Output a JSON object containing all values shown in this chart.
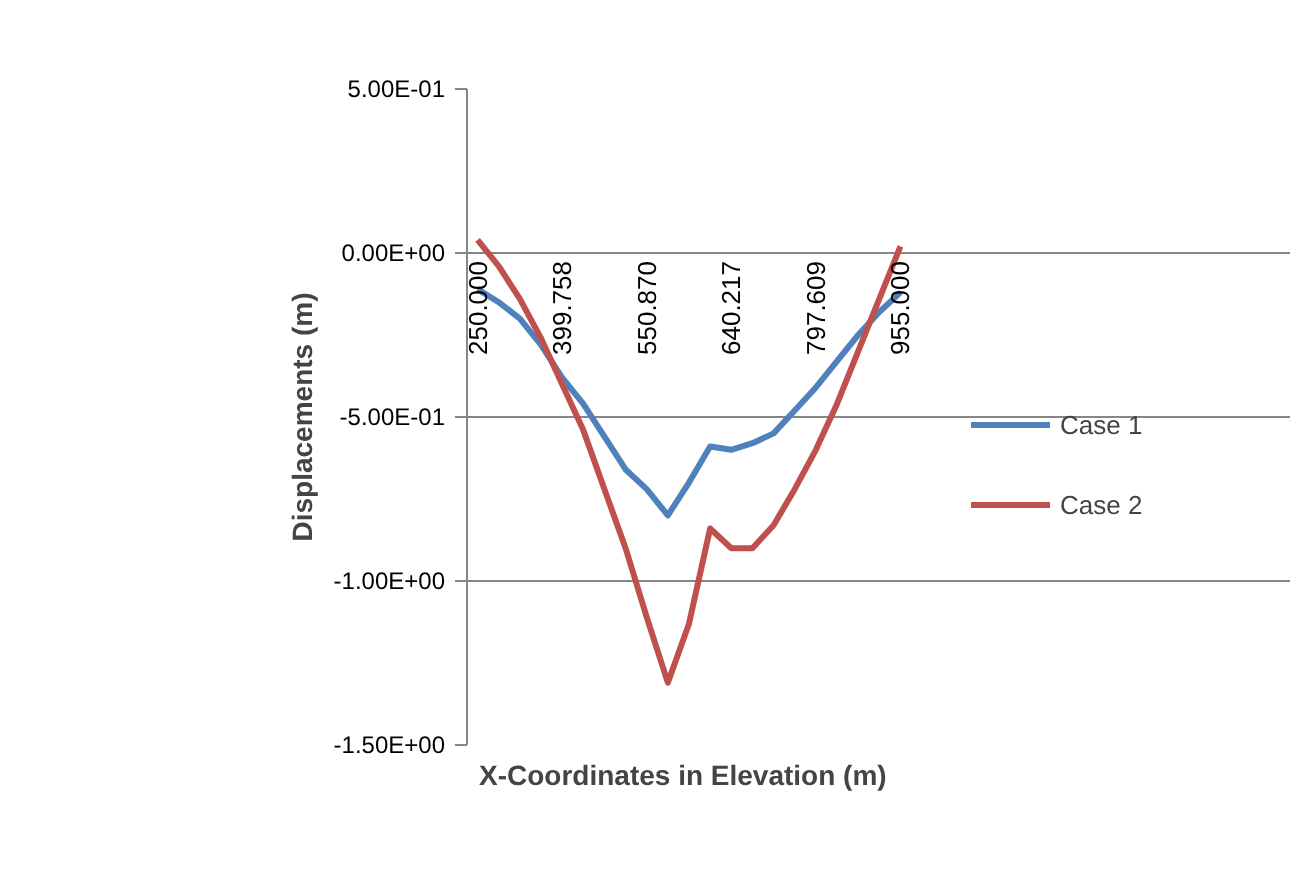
{
  "chart_data": {
    "type": "line",
    "xlabel": "X-Coordinates in Elevation (m)",
    "ylabel": "Displacements (m)",
    "categories": [
      "250.000",
      null,
      null,
      null,
      "399.758",
      null,
      null,
      null,
      "550.870",
      null,
      null,
      null,
      "640.217",
      null,
      null,
      null,
      "797.609",
      null,
      null,
      null,
      "955.000"
    ],
    "series": [
      {
        "name": "Case 1",
        "color": "#4f81bd",
        "values": [
          -0.11,
          -0.15,
          -0.2,
          -0.28,
          -0.38,
          -0.46,
          -0.56,
          -0.66,
          -0.72,
          -0.8,
          -0.7,
          -0.59,
          -0.6,
          -0.58,
          -0.55,
          -0.48,
          -0.41,
          -0.33,
          -0.25,
          -0.18,
          -0.12
        ]
      },
      {
        "name": "Case 2",
        "color": "#c0504d",
        "values": [
          0.04,
          -0.04,
          -0.14,
          -0.26,
          -0.4,
          -0.54,
          -0.72,
          -0.9,
          -1.11,
          -1.31,
          -1.13,
          -0.84,
          -0.9,
          -0.9,
          -0.83,
          -0.72,
          -0.6,
          -0.46,
          -0.3,
          -0.14,
          0.02
        ]
      }
    ],
    "ylim": [
      -1.5,
      0.5
    ],
    "yticks": [
      {
        "value": 0.5,
        "label": "5.00E-01"
      },
      {
        "value": 0,
        "label": "0.00E+00"
      },
      {
        "value": -0.5,
        "label": "-5.00E-01"
      },
      {
        "value": -1,
        "label": "-1.00E+00"
      },
      {
        "value": -1.5,
        "label": "-1.50E+00"
      }
    ],
    "grid": "y",
    "legend": "right",
    "marker": "none",
    "line_style": "solid"
  }
}
